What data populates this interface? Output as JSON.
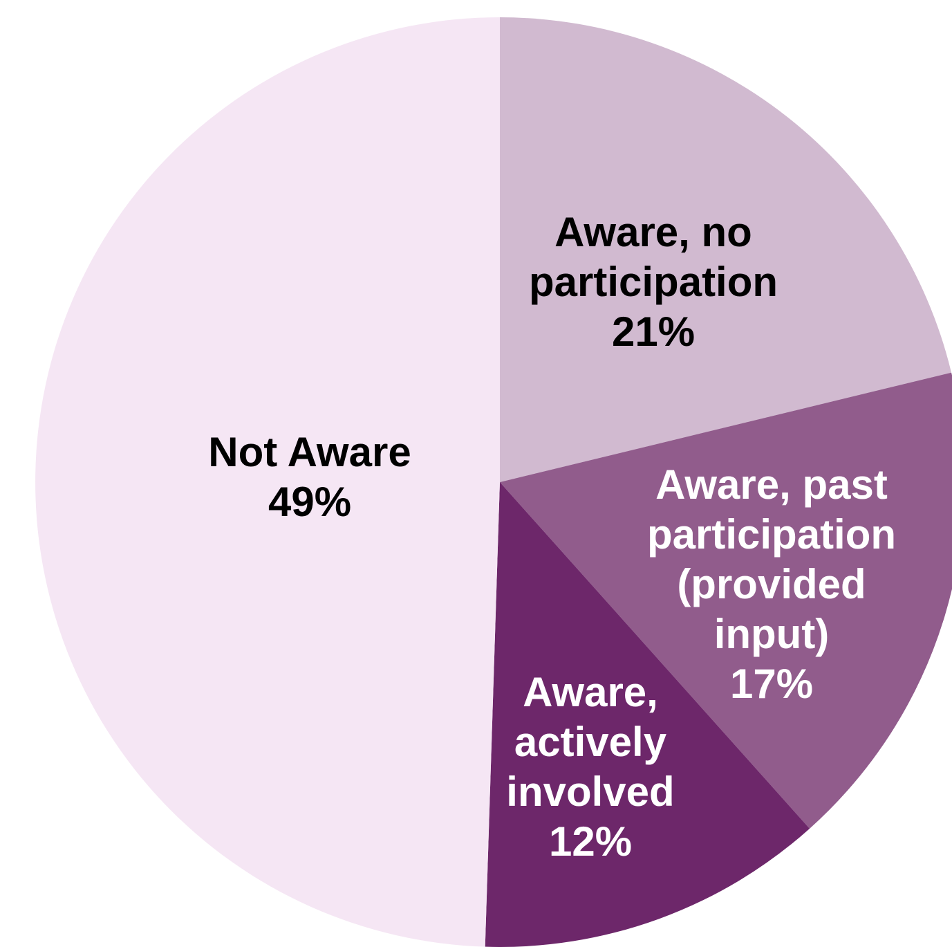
{
  "chart_data": {
    "type": "pie",
    "title": "",
    "start_angle_deg": 0,
    "direction": "clockwise",
    "slices": [
      {
        "label_lines": [
          "Aware, no",
          "participation"
        ],
        "value": 21,
        "value_label": "21%",
        "color": "#D1BAD0",
        "label_color": "#000000"
      },
      {
        "label_lines": [
          "Aware, past",
          "participation",
          "(provided",
          "input)"
        ],
        "value": 17,
        "value_label": "17%",
        "color": "#915C8C",
        "label_color": "#FFFFFF"
      },
      {
        "label_lines": [
          "Aware,",
          "actively",
          "involved"
        ],
        "value": 12,
        "value_label": "12%",
        "color": "#6D276A",
        "label_color": "#FFFFFF"
      },
      {
        "label_lines": [
          "Not Aware"
        ],
        "value": 49,
        "value_label": "49%",
        "color": "#F5E6F4",
        "label_color": "#000000"
      }
    ]
  }
}
